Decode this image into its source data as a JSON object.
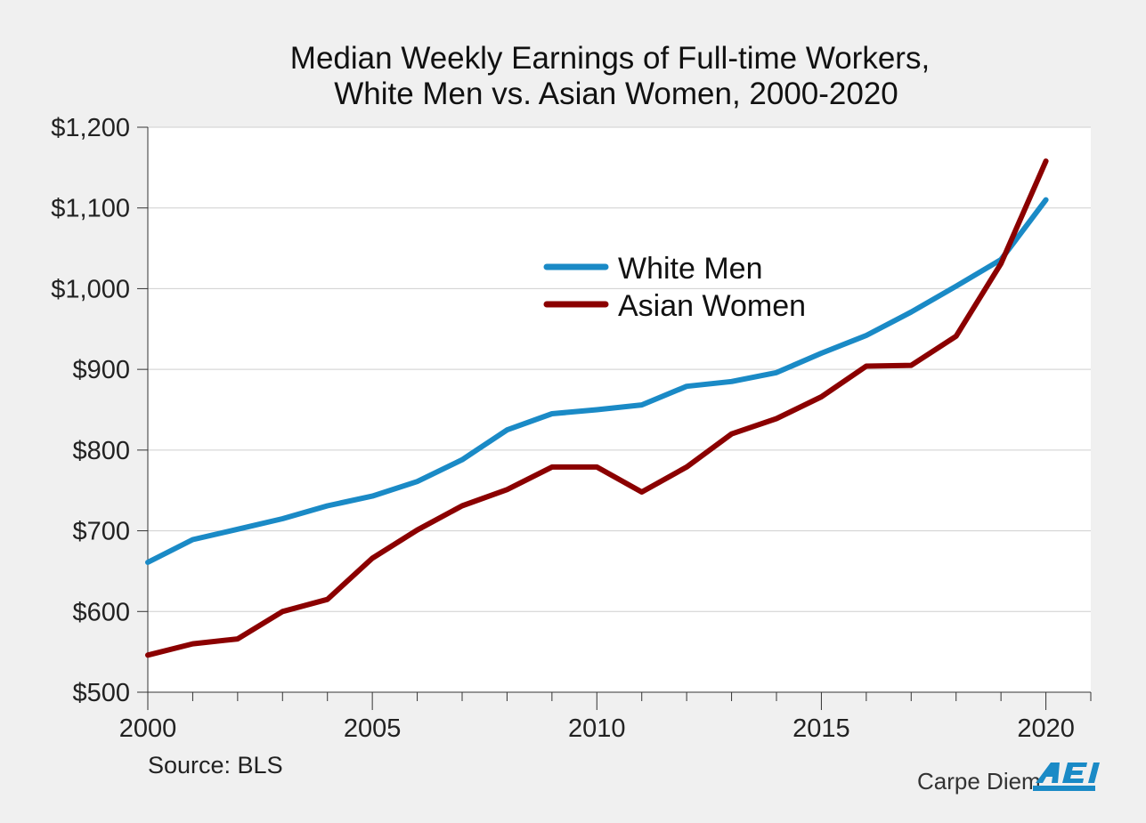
{
  "chart_data": {
    "type": "line",
    "title": [
      "Median Weekly Earnings of Full-time Workers,",
      "White Men vs. Asian Women, 2000-2020"
    ],
    "xlabel": "",
    "ylabel": "",
    "x": [
      2000,
      2001,
      2002,
      2003,
      2004,
      2005,
      2006,
      2007,
      2008,
      2009,
      2010,
      2011,
      2012,
      2013,
      2014,
      2015,
      2016,
      2017,
      2018,
      2019,
      2020
    ],
    "xlim": [
      2000,
      2021
    ],
    "ylim": [
      500,
      1200
    ],
    "x_ticks": [
      2000,
      2005,
      2010,
      2015,
      2020
    ],
    "y_ticks": [
      500,
      600,
      700,
      800,
      900,
      1000,
      1100,
      1200
    ],
    "y_tick_labels": [
      "$500",
      "$600",
      "$700",
      "$800",
      "$900",
      "$1,000",
      "$1,100",
      "$1,200"
    ],
    "grid": "horizontal",
    "legend_position": "center",
    "series": [
      {
        "name": "White Men",
        "color": "#1a8ac6",
        "values": [
          661,
          689,
          702,
          715,
          731,
          743,
          761,
          788,
          825,
          845,
          850,
          856,
          879,
          885,
          896,
          920,
          942,
          971,
          1003,
          1036,
          1110
        ]
      },
      {
        "name": "Asian Women",
        "color": "#8b0000",
        "values": [
          546,
          560,
          566,
          600,
          615,
          666,
          701,
          731,
          751,
          779,
          779,
          748,
          779,
          820,
          839,
          866,
          904,
          905,
          941,
          1031,
          1158
        ]
      }
    ]
  },
  "footer": {
    "source": "Source: BLS",
    "brand": "Carpe Diem",
    "logo": "AEI"
  }
}
